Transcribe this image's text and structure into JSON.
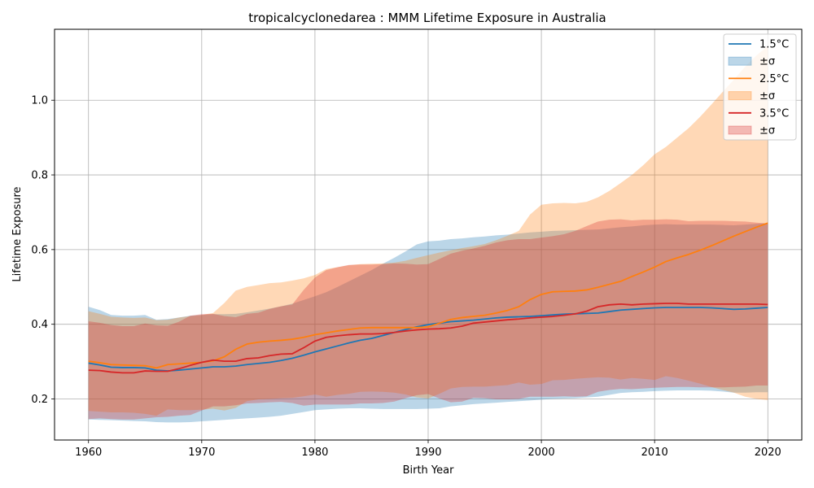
{
  "chart_data": {
    "type": "line",
    "title": "tropicalcyclonedarea : MMM Lifetime Exposure in Australia",
    "xlabel": "Birth Year",
    "ylabel": "Lifetime Exposure",
    "xlim": [
      1957,
      2023
    ],
    "ylim": [
      0.09,
      1.19
    ],
    "xticks": [
      1960,
      1970,
      1980,
      1990,
      2000,
      2010,
      2020
    ],
    "yticks": [
      0.2,
      0.4,
      0.6,
      0.8,
      1.0
    ],
    "grid": true,
    "legend_position": "top-right",
    "x": [
      1960,
      1961,
      1962,
      1963,
      1964,
      1965,
      1966,
      1967,
      1968,
      1969,
      1970,
      1971,
      1972,
      1973,
      1974,
      1975,
      1976,
      1977,
      1978,
      1979,
      1980,
      1981,
      1982,
      1983,
      1984,
      1985,
      1986,
      1987,
      1988,
      1989,
      1990,
      1991,
      1992,
      1993,
      1994,
      1995,
      1996,
      1997,
      1998,
      1999,
      2000,
      2001,
      2002,
      2003,
      2004,
      2005,
      2006,
      2007,
      2008,
      2009,
      2010,
      2011,
      2012,
      2013,
      2014,
      2015,
      2016,
      2017,
      2018,
      2019,
      2020
    ],
    "series": [
      {
        "name": "1.5°C",
        "band_name": "±σ",
        "color": "#1f77b4",
        "values": [
          0.296,
          0.291,
          0.285,
          0.284,
          0.284,
          0.283,
          0.277,
          0.275,
          0.277,
          0.28,
          0.283,
          0.286,
          0.286,
          0.288,
          0.292,
          0.295,
          0.298,
          0.303,
          0.309,
          0.317,
          0.326,
          0.334,
          0.342,
          0.35,
          0.357,
          0.362,
          0.37,
          0.378,
          0.386,
          0.393,
          0.399,
          0.403,
          0.407,
          0.409,
          0.411,
          0.414,
          0.417,
          0.419,
          0.42,
          0.421,
          0.423,
          0.425,
          0.427,
          0.428,
          0.429,
          0.43,
          0.434,
          0.438,
          0.44,
          0.442,
          0.444,
          0.445,
          0.445,
          0.445,
          0.445,
          0.444,
          0.442,
          0.44,
          0.441,
          0.443,
          0.445
        ],
        "upper": [
          0.447,
          0.438,
          0.425,
          0.423,
          0.423,
          0.425,
          0.412,
          0.414,
          0.418,
          0.423,
          0.425,
          0.427,
          0.427,
          0.428,
          0.432,
          0.437,
          0.442,
          0.448,
          0.455,
          0.465,
          0.475,
          0.486,
          0.5,
          0.515,
          0.53,
          0.545,
          0.562,
          0.578,
          0.595,
          0.614,
          0.622,
          0.624,
          0.628,
          0.63,
          0.633,
          0.635,
          0.638,
          0.64,
          0.643,
          0.646,
          0.648,
          0.65,
          0.651,
          0.652,
          0.653,
          0.654,
          0.657,
          0.66,
          0.662,
          0.665,
          0.667,
          0.668,
          0.667,
          0.667,
          0.667,
          0.667,
          0.666,
          0.665,
          0.667,
          0.669,
          0.671
        ],
        "lower": [
          0.145,
          0.144,
          0.143,
          0.142,
          0.141,
          0.14,
          0.138,
          0.137,
          0.137,
          0.138,
          0.14,
          0.142,
          0.144,
          0.146,
          0.148,
          0.15,
          0.152,
          0.155,
          0.16,
          0.165,
          0.17,
          0.172,
          0.174,
          0.175,
          0.175,
          0.174,
          0.173,
          0.173,
          0.173,
          0.173,
          0.174,
          0.175,
          0.18,
          0.183,
          0.186,
          0.188,
          0.19,
          0.192,
          0.194,
          0.196,
          0.198,
          0.2,
          0.201,
          0.202,
          0.204,
          0.206,
          0.211,
          0.216,
          0.218,
          0.219,
          0.221,
          0.222,
          0.223,
          0.223,
          0.223,
          0.222,
          0.22,
          0.217,
          0.217,
          0.218,
          0.218
        ]
      },
      {
        "name": "2.5°C",
        "band_name": "±σ",
        "color": "#ff7f0e",
        "values": [
          0.301,
          0.297,
          0.292,
          0.291,
          0.29,
          0.289,
          0.283,
          0.292,
          0.294,
          0.296,
          0.298,
          0.302,
          0.313,
          0.333,
          0.347,
          0.352,
          0.355,
          0.357,
          0.36,
          0.365,
          0.372,
          0.377,
          0.382,
          0.386,
          0.39,
          0.391,
          0.391,
          0.391,
          0.391,
          0.391,
          0.393,
          0.403,
          0.413,
          0.418,
          0.421,
          0.424,
          0.43,
          0.437,
          0.447,
          0.466,
          0.48,
          0.487,
          0.488,
          0.489,
          0.492,
          0.499,
          0.507,
          0.515,
          0.528,
          0.54,
          0.553,
          0.568,
          0.578,
          0.587,
          0.598,
          0.61,
          0.623,
          0.636,
          0.648,
          0.66,
          0.671
        ],
        "upper": [
          0.435,
          0.428,
          0.42,
          0.418,
          0.417,
          0.418,
          0.411,
          0.412,
          0.418,
          0.422,
          0.425,
          0.43,
          0.457,
          0.49,
          0.5,
          0.505,
          0.51,
          0.512,
          0.517,
          0.523,
          0.532,
          0.548,
          0.553,
          0.558,
          0.561,
          0.562,
          0.563,
          0.565,
          0.57,
          0.578,
          0.585,
          0.592,
          0.598,
          0.604,
          0.609,
          0.615,
          0.625,
          0.637,
          0.65,
          0.694,
          0.72,
          0.724,
          0.725,
          0.724,
          0.728,
          0.74,
          0.757,
          0.778,
          0.8,
          0.826,
          0.855,
          0.875,
          0.9,
          0.925,
          0.955,
          0.988,
          1.022,
          1.055,
          1.09,
          1.12,
          1.145
        ],
        "lower": [
          0.168,
          0.166,
          0.164,
          0.164,
          0.163,
          0.16,
          0.155,
          0.172,
          0.17,
          0.17,
          0.171,
          0.174,
          0.169,
          0.176,
          0.194,
          0.199,
          0.2,
          0.202,
          0.203,
          0.207,
          0.212,
          0.206,
          0.211,
          0.214,
          0.219,
          0.22,
          0.219,
          0.217,
          0.212,
          0.204,
          0.201,
          0.214,
          0.228,
          0.232,
          0.233,
          0.233,
          0.235,
          0.237,
          0.244,
          0.238,
          0.24,
          0.25,
          0.251,
          0.254,
          0.256,
          0.258,
          0.257,
          0.252,
          0.256,
          0.254,
          0.251,
          0.261,
          0.256,
          0.249,
          0.241,
          0.232,
          0.224,
          0.217,
          0.206,
          0.2,
          0.197
        ]
      },
      {
        "name": "3.5°C",
        "band_name": "±σ",
        "color": "#d62728",
        "values": [
          0.277,
          0.276,
          0.272,
          0.27,
          0.27,
          0.275,
          0.274,
          0.274,
          0.281,
          0.29,
          0.298,
          0.304,
          0.301,
          0.301,
          0.308,
          0.31,
          0.316,
          0.32,
          0.321,
          0.337,
          0.355,
          0.365,
          0.369,
          0.372,
          0.374,
          0.374,
          0.375,
          0.378,
          0.382,
          0.385,
          0.387,
          0.388,
          0.39,
          0.395,
          0.403,
          0.406,
          0.409,
          0.412,
          0.414,
          0.417,
          0.419,
          0.421,
          0.424,
          0.428,
          0.435,
          0.447,
          0.452,
          0.454,
          0.452,
          0.454,
          0.455,
          0.456,
          0.456,
          0.454,
          0.454,
          0.454,
          0.454,
          0.454,
          0.454,
          0.454,
          0.453
        ],
        "upper": [
          0.408,
          0.404,
          0.398,
          0.395,
          0.395,
          0.402,
          0.397,
          0.396,
          0.407,
          0.423,
          0.427,
          0.428,
          0.422,
          0.419,
          0.428,
          0.431,
          0.441,
          0.448,
          0.453,
          0.492,
          0.525,
          0.545,
          0.553,
          0.559,
          0.56,
          0.56,
          0.561,
          0.563,
          0.562,
          0.56,
          0.561,
          0.575,
          0.589,
          0.597,
          0.603,
          0.61,
          0.619,
          0.625,
          0.628,
          0.628,
          0.632,
          0.636,
          0.641,
          0.65,
          0.663,
          0.675,
          0.68,
          0.681,
          0.678,
          0.68,
          0.68,
          0.681,
          0.68,
          0.676,
          0.677,
          0.677,
          0.677,
          0.676,
          0.675,
          0.672,
          0.67
        ],
        "lower": [
          0.146,
          0.148,
          0.146,
          0.145,
          0.145,
          0.148,
          0.151,
          0.152,
          0.155,
          0.157,
          0.169,
          0.18,
          0.18,
          0.183,
          0.188,
          0.189,
          0.191,
          0.192,
          0.189,
          0.182,
          0.185,
          0.185,
          0.185,
          0.185,
          0.188,
          0.188,
          0.189,
          0.193,
          0.202,
          0.21,
          0.213,
          0.201,
          0.191,
          0.193,
          0.203,
          0.202,
          0.199,
          0.199,
          0.2,
          0.206,
          0.206,
          0.206,
          0.207,
          0.206,
          0.207,
          0.219,
          0.224,
          0.227,
          0.226,
          0.228,
          0.23,
          0.231,
          0.232,
          0.232,
          0.231,
          0.231,
          0.231,
          0.232,
          0.233,
          0.236,
          0.236
        ]
      }
    ]
  }
}
